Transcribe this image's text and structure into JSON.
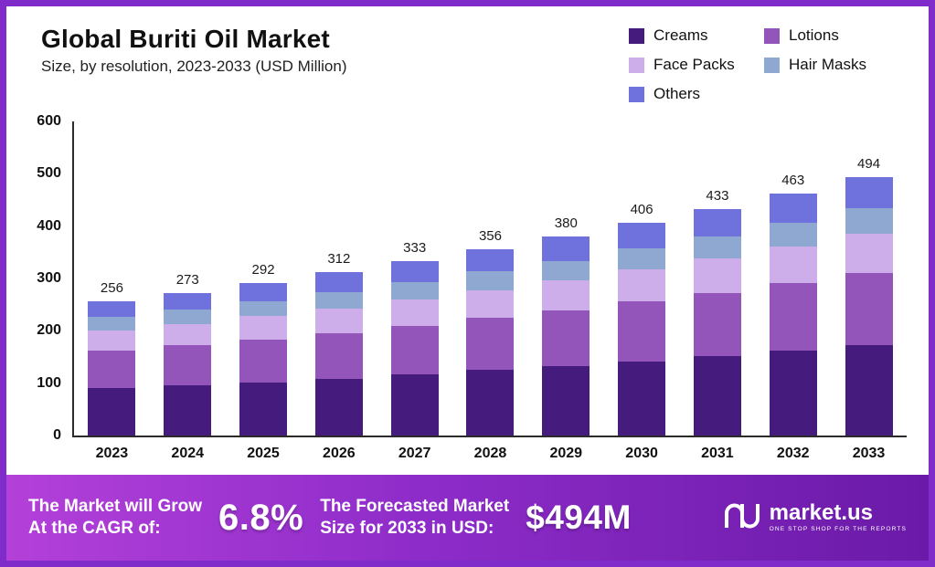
{
  "header": {
    "title": "Global Buriti Oil Market",
    "subtitle": "Size, by resolution, 2023-2033 (USD Million)"
  },
  "legend": [
    {
      "label": "Creams",
      "color": "#451c7d"
    },
    {
      "label": "Lotions",
      "color": "#9455bb"
    },
    {
      "label": "Face Packs",
      "color": "#cdadea"
    },
    {
      "label": "Hair Masks",
      "color": "#8fa8d2"
    },
    {
      "label": "Others",
      "color": "#6f71dd"
    }
  ],
  "chart_data": {
    "type": "bar",
    "stacked": true,
    "title": "Global Buriti Oil Market",
    "subtitle": "Size, by resolution, 2023-2033 (USD Million)",
    "categories": [
      "2023",
      "2024",
      "2025",
      "2026",
      "2027",
      "2028",
      "2029",
      "2030",
      "2031",
      "2032",
      "2033"
    ],
    "totals": [
      256,
      273,
      292,
      312,
      333,
      356,
      380,
      406,
      433,
      463,
      494
    ],
    "series": [
      {
        "name": "Creams",
        "color": "#451c7d",
        "values": [
          90,
          96,
          102,
          109,
          117,
          125,
          133,
          142,
          152,
          162,
          173
        ]
      },
      {
        "name": "Lotions",
        "color": "#9455bb",
        "values": [
          72,
          76,
          82,
          87,
          93,
          100,
          106,
          114,
          121,
          130,
          138
        ]
      },
      {
        "name": "Face Packs",
        "color": "#cdadea",
        "values": [
          38,
          41,
          44,
          47,
          50,
          53,
          57,
          61,
          65,
          69,
          74
        ]
      },
      {
        "name": "Hair Masks",
        "color": "#8fa8d2",
        "values": [
          26,
          27,
          29,
          31,
          33,
          36,
          38,
          41,
          43,
          46,
          49
        ]
      },
      {
        "name": "Others",
        "color": "#6f71dd",
        "values": [
          30,
          33,
          35,
          38,
          40,
          42,
          46,
          48,
          52,
          56,
          60
        ]
      }
    ],
    "ylim": [
      0,
      600
    ],
    "yticks": [
      0,
      100,
      200,
      300,
      400,
      500,
      600
    ],
    "xlabel": "",
    "ylabel": "",
    "grid": false,
    "legend_position": "top-right",
    "value_labels": "totals-above-bars"
  },
  "banner": {
    "growth_line1": "The Market will Grow",
    "growth_line2": "At the CAGR of:",
    "cagr_value": "6.8%",
    "forecast_line1": "The Forecasted Market",
    "forecast_line2": "Size for 2033 in USD:",
    "forecast_value": "$494M",
    "brand_name": "market.us",
    "brand_tagline": "ONE STOP SHOP FOR THE REPORTS"
  }
}
